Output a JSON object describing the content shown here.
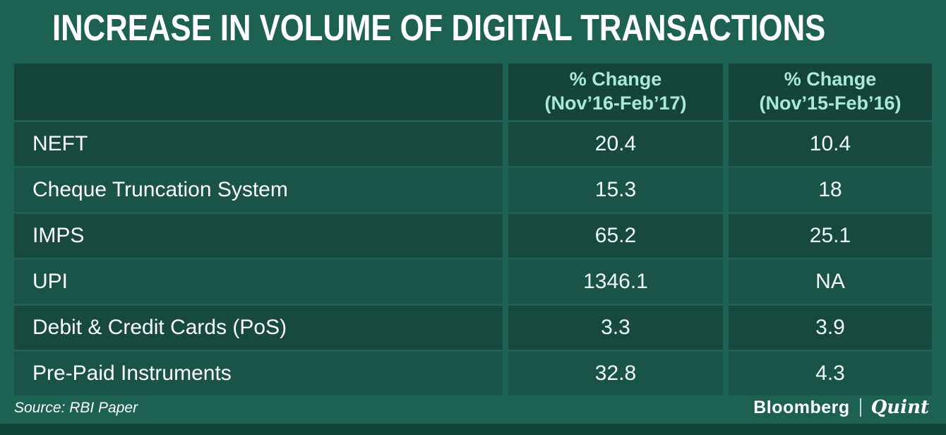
{
  "title": "INCREASE IN VOLUME OF DIGITAL TRANSACTIONS",
  "table": {
    "headers": [
      {
        "line1": "% Change",
        "line2": "(Nov’16-Feb’17)"
      },
      {
        "line1": "% Change",
        "line2": "(Nov’15-Feb’16)"
      }
    ],
    "rows": [
      {
        "label": "NEFT",
        "change_16_17": "20.4",
        "change_15_16": "10.4"
      },
      {
        "label": "Cheque Truncation System",
        "change_16_17": "15.3",
        "change_15_16": "18"
      },
      {
        "label": "IMPS",
        "change_16_17": "65.2",
        "change_15_16": "25.1"
      },
      {
        "label": "UPI",
        "change_16_17": "1346.1",
        "change_15_16": "NA"
      },
      {
        "label": "Debit & Credit Cards (PoS)",
        "change_16_17": "3.3",
        "change_15_16": "3.9"
      },
      {
        "label": "Pre-Paid Instruments",
        "change_16_17": "32.8",
        "change_15_16": "4.3"
      }
    ]
  },
  "footer": {
    "source": "Source: RBI Paper",
    "brand_primary": "Bloomberg",
    "brand_secondary": "Quint"
  },
  "colors": {
    "background": "#1d6153",
    "header_cell": "#15453a",
    "row_dark": "#17493e",
    "row_light": "#1a5347",
    "header_text": "#a9ead6",
    "body_text": "#ffffff",
    "bottom_strip": "#0e4338"
  },
  "chart_data": {
    "type": "table",
    "title": "INCREASE IN VOLUME OF DIGITAL TRANSACTIONS",
    "columns": [
      "",
      "% Change (Nov’16-Feb’17)",
      "% Change (Nov’15-Feb’16)"
    ],
    "rows": [
      [
        "NEFT",
        20.4,
        10.4
      ],
      [
        "Cheque Truncation System",
        15.3,
        18
      ],
      [
        "IMPS",
        65.2,
        25.1
      ],
      [
        "UPI",
        1346.1,
        "NA"
      ],
      [
        "Debit & Credit Cards (PoS)",
        3.3,
        3.9
      ],
      [
        "Pre-Paid Instruments",
        32.8,
        4.3
      ]
    ],
    "source": "Source: RBI Paper"
  }
}
